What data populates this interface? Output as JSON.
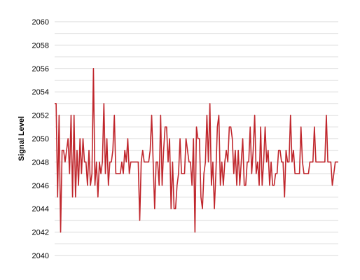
{
  "chart_data": {
    "type": "line",
    "title": "",
    "xlabel": "",
    "ylabel": "Signal Level",
    "ylim": [
      2040,
      2060
    ],
    "yticks": [
      2040,
      2042,
      2044,
      2046,
      2048,
      2050,
      2052,
      2054,
      2056,
      2058,
      2060
    ],
    "minor_grid_step": 1,
    "grid": true,
    "legend": "none",
    "colors": {
      "line": "#c0272d",
      "grid": "#d9d9d9"
    },
    "series": [
      {
        "values": [
          2053,
          2053,
          2045,
          2052,
          2042,
          2049,
          2049,
          2048,
          2049,
          2050,
          2047,
          2052,
          2045,
          2052,
          2045,
          2049,
          2046,
          2050,
          2047,
          2050,
          2048,
          2048,
          2046,
          2049,
          2046,
          2047,
          2056,
          2046,
          2048,
          2045,
          2048,
          2047,
          2048,
          2053,
          2047,
          2050,
          2046,
          2048,
          2048,
          2049,
          2052,
          2047,
          2047,
          2047,
          2047,
          2048,
          2047,
          2049,
          2048,
          2050,
          2047,
          2048,
          2048,
          2048,
          2048,
          2048,
          2048,
          2043,
          2048,
          2049,
          2048,
          2048,
          2048,
          2048,
          2049,
          2052,
          2048,
          2044,
          2048,
          2048,
          2046,
          2052,
          2046,
          2049,
          2051,
          2051,
          2048,
          2050,
          2044,
          2048,
          2044,
          2044,
          2046,
          2047,
          2050,
          2047,
          2047,
          2047,
          2050,
          2049,
          2048,
          2048,
          2046,
          2050,
          2042,
          2051,
          2050,
          2050,
          2045,
          2044,
          2047,
          2048,
          2052,
          2048,
          2053,
          2046,
          2048,
          2044,
          2047,
          2051,
          2052,
          2046,
          2048,
          2046,
          2048,
          2049,
          2048,
          2051,
          2051,
          2050,
          2047,
          2049,
          2046,
          2049,
          2046,
          2048,
          2050,
          2046,
          2046,
          2048,
          2048,
          2051,
          2047,
          2049,
          2052,
          2047,
          2048,
          2046,
          2051,
          2046,
          2048,
          2051,
          2048,
          2049,
          2046,
          2048,
          2046,
          2046,
          2047,
          2047,
          2049,
          2049,
          2048,
          2048,
          2045,
          2049,
          2048,
          2048,
          2052,
          2048,
          2049,
          2047,
          2047,
          2047,
          2047,
          2051,
          2048,
          2047,
          2047,
          2047,
          2047,
          2048,
          2048,
          2048,
          2051,
          2048,
          2048,
          2048,
          2048,
          2048,
          2048,
          2048,
          2052,
          2048,
          2048,
          2048,
          2046,
          2047,
          2048,
          2048,
          2048
        ]
      }
    ]
  }
}
